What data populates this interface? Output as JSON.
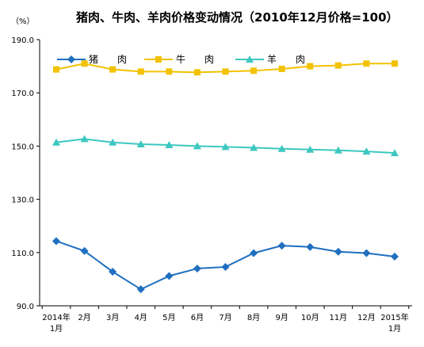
{
  "chart_data": {
    "type": "line",
    "title": "猪肉、牛肉、羊肉价格变动情况（2010年12月价格=100）",
    "unit_label": "（%）",
    "ylim": [
      90,
      190
    ],
    "y_ticks": [
      "90.0",
      "110.0",
      "130.0",
      "150.0",
      "170.0",
      "190.0"
    ],
    "x_tick_labels": [
      [
        "2014年",
        "1月"
      ],
      [
        "2月"
      ],
      [
        "3月"
      ],
      [
        "4月"
      ],
      [
        "5月"
      ],
      [
        "6月"
      ],
      [
        "7月"
      ],
      [
        "8月"
      ],
      [
        "9月"
      ],
      [
        "10月"
      ],
      [
        "11月"
      ],
      [
        "12月"
      ],
      [
        "2015年",
        "1月"
      ]
    ],
    "legend_position": "top-left",
    "grid": false,
    "series": [
      {
        "name": "猪　　肉",
        "color": "#1F6FC0",
        "marker": "diamond",
        "values": [
          114.3,
          110.6,
          102.8,
          96.2,
          101.2,
          104.0,
          104.6,
          109.8,
          112.6,
          112.1,
          110.3,
          109.8,
          108.5
        ]
      },
      {
        "name": "牛　　肉",
        "color": "#F2C200",
        "marker": "square",
        "values": [
          178.8,
          181.0,
          178.8,
          178.0,
          178.0,
          177.7,
          178.0,
          178.3,
          179.0,
          180.0,
          180.3,
          181.0,
          181.0
        ]
      },
      {
        "name": "羊　　肉",
        "color": "#3CC8C0",
        "marker": "triangle",
        "values": [
          151.4,
          152.7,
          151.4,
          150.7,
          150.4,
          150.0,
          149.7,
          149.4,
          149.0,
          148.7,
          148.4,
          148.0,
          147.4
        ]
      }
    ]
  }
}
